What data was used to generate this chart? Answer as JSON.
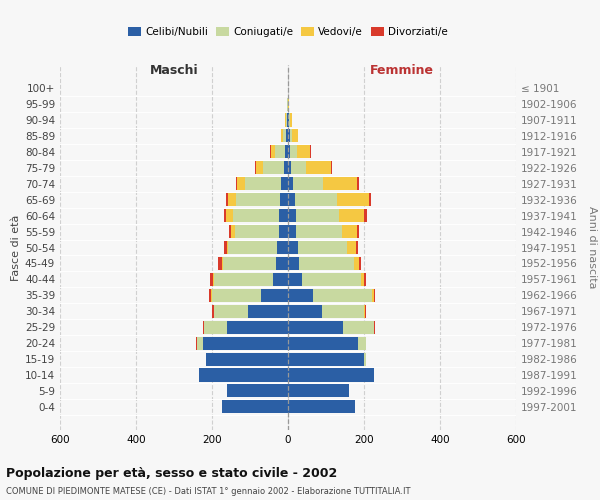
{
  "age_groups": [
    "0-4",
    "5-9",
    "10-14",
    "15-19",
    "20-24",
    "25-29",
    "30-34",
    "35-39",
    "40-44",
    "45-49",
    "50-54",
    "55-59",
    "60-64",
    "65-69",
    "70-74",
    "75-79",
    "80-84",
    "85-89",
    "90-94",
    "95-99",
    "100+"
  ],
  "birth_years": [
    "1997-2001",
    "1992-1996",
    "1987-1991",
    "1982-1986",
    "1977-1981",
    "1972-1976",
    "1967-1971",
    "1962-1966",
    "1957-1961",
    "1952-1956",
    "1947-1951",
    "1942-1946",
    "1937-1941",
    "1932-1936",
    "1927-1931",
    "1922-1926",
    "1917-1921",
    "1912-1916",
    "1907-1911",
    "1902-1906",
    "≤ 1901"
  ],
  "maschi": {
    "celibi": [
      175,
      160,
      235,
      215,
      225,
      160,
      105,
      70,
      40,
      32,
      28,
      25,
      25,
      22,
      18,
      10,
      8,
      5,
      2,
      1,
      0
    ],
    "coniugati": [
      0,
      0,
      0,
      0,
      15,
      60,
      90,
      130,
      155,
      140,
      130,
      115,
      120,
      115,
      95,
      55,
      25,
      8,
      4,
      1,
      0
    ],
    "vedovi": [
      0,
      0,
      0,
      0,
      0,
      1,
      1,
      2,
      2,
      3,
      3,
      10,
      18,
      20,
      20,
      20,
      12,
      5,
      2,
      1,
      0
    ],
    "divorziati": [
      0,
      0,
      0,
      0,
      1,
      2,
      3,
      5,
      8,
      8,
      8,
      5,
      5,
      5,
      5,
      3,
      2,
      0,
      0,
      0,
      0
    ]
  },
  "femmine": {
    "nubili": [
      175,
      160,
      225,
      200,
      185,
      145,
      90,
      65,
      38,
      28,
      25,
      22,
      20,
      18,
      12,
      8,
      5,
      4,
      2,
      0,
      0
    ],
    "coniugate": [
      0,
      0,
      0,
      5,
      20,
      80,
      110,
      155,
      155,
      145,
      130,
      120,
      115,
      110,
      80,
      40,
      18,
      7,
      3,
      1,
      0
    ],
    "vedove": [
      0,
      0,
      0,
      0,
      0,
      1,
      2,
      5,
      8,
      15,
      25,
      40,
      65,
      85,
      90,
      65,
      35,
      15,
      5,
      1,
      0
    ],
    "divorziate": [
      0,
      0,
      0,
      0,
      1,
      2,
      3,
      3,
      5,
      5,
      5,
      5,
      8,
      5,
      5,
      2,
      2,
      1,
      0,
      0,
      0
    ]
  },
  "colors": {
    "celibi_nubili": "#2b5fa5",
    "coniugati": "#c8d9a0",
    "vedovi": "#f5c842",
    "divorziati": "#d93a2b"
  },
  "xlim": 600,
  "title": "Popolazione per età, sesso e stato civile - 2002",
  "subtitle": "COMUNE DI PIEDIMONTE MATESE (CE) - Dati ISTAT 1° gennaio 2002 - Elaborazione TUTTITALIA.IT",
  "ylabel_left": "Fasce di età",
  "ylabel_right": "Anni di nascita",
  "xlabel_maschi": "Maschi",
  "xlabel_femmine": "Femmine",
  "legend_labels": [
    "Celibi/Nubili",
    "Coniugati/e",
    "Vedovi/e",
    "Divorziati/e"
  ],
  "bg_color": "#f7f7f7",
  "grid_color": "#cccccc"
}
